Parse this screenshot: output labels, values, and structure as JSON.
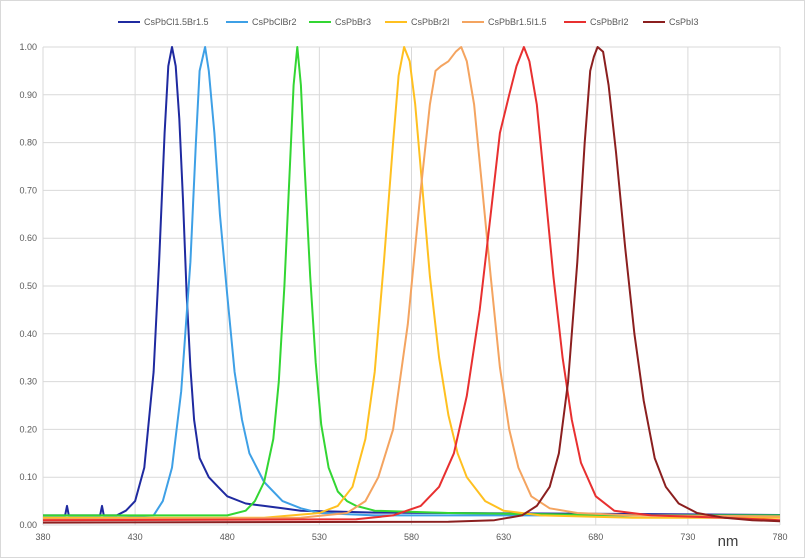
{
  "chart_data": {
    "type": "line",
    "xlabel": "nm",
    "ylabel": "",
    "xlim": [
      380,
      780
    ],
    "ylim": [
      0,
      1
    ],
    "x_ticks": [
      "380",
      "430",
      "480",
      "530",
      "580",
      "630",
      "680",
      "730",
      "780"
    ],
    "y_ticks": [
      "0.00",
      "0.10",
      "0.20",
      "0.30",
      "0.40",
      "0.50",
      "0.60",
      "0.70",
      "0.80",
      "0.90",
      "1.00"
    ],
    "grid": true,
    "legend_position": "top",
    "series": [
      {
        "name": "CsPbCl1.5Br1.5",
        "color": "#1f2aa0",
        "points": [
          [
            380,
            0.02
          ],
          [
            392,
            0.02
          ],
          [
            393,
            0.04
          ],
          [
            394,
            0.02
          ],
          [
            411,
            0.02
          ],
          [
            412,
            0.04
          ],
          [
            413,
            0.02
          ],
          [
            420,
            0.02
          ],
          [
            425,
            0.03
          ],
          [
            430,
            0.05
          ],
          [
            435,
            0.12
          ],
          [
            440,
            0.32
          ],
          [
            443,
            0.55
          ],
          [
            446,
            0.82
          ],
          [
            448,
            0.96
          ],
          [
            450,
            1.0
          ],
          [
            452,
            0.96
          ],
          [
            454,
            0.85
          ],
          [
            456,
            0.68
          ],
          [
            458,
            0.48
          ],
          [
            460,
            0.33
          ],
          [
            462,
            0.22
          ],
          [
            465,
            0.14
          ],
          [
            470,
            0.1
          ],
          [
            475,
            0.08
          ],
          [
            480,
            0.06
          ],
          [
            490,
            0.045
          ],
          [
            500,
            0.04
          ],
          [
            510,
            0.035
          ],
          [
            520,
            0.03
          ],
          [
            540,
            0.028
          ],
          [
            560,
            0.026
          ],
          [
            600,
            0.025
          ],
          [
            650,
            0.024
          ],
          [
            700,
            0.023
          ],
          [
            740,
            0.022
          ],
          [
            780,
            0.021
          ]
        ]
      },
      {
        "name": "CsPbClBr2",
        "color": "#3ea0e6",
        "points": [
          [
            380,
            0.015
          ],
          [
            420,
            0.015
          ],
          [
            440,
            0.02
          ],
          [
            445,
            0.05
          ],
          [
            450,
            0.12
          ],
          [
            455,
            0.28
          ],
          [
            460,
            0.55
          ],
          [
            463,
            0.8
          ],
          [
            465,
            0.95
          ],
          [
            468,
            1.0
          ],
          [
            470,
            0.95
          ],
          [
            473,
            0.82
          ],
          [
            476,
            0.65
          ],
          [
            480,
            0.48
          ],
          [
            484,
            0.32
          ],
          [
            488,
            0.22
          ],
          [
            492,
            0.15
          ],
          [
            500,
            0.09
          ],
          [
            510,
            0.05
          ],
          [
            520,
            0.035
          ],
          [
            530,
            0.025
          ],
          [
            560,
            0.02
          ],
          [
            600,
            0.02
          ],
          [
            700,
            0.02
          ],
          [
            780,
            0.02
          ]
        ]
      },
      {
        "name": "CsPbBr3",
        "color": "#33d633",
        "points": [
          [
            380,
            0.02
          ],
          [
            450,
            0.02
          ],
          [
            480,
            0.02
          ],
          [
            490,
            0.03
          ],
          [
            495,
            0.05
          ],
          [
            500,
            0.09
          ],
          [
            505,
            0.18
          ],
          [
            508,
            0.3
          ],
          [
            511,
            0.5
          ],
          [
            514,
            0.75
          ],
          [
            516,
            0.92
          ],
          [
            518,
            1.0
          ],
          [
            520,
            0.92
          ],
          [
            522,
            0.75
          ],
          [
            525,
            0.52
          ],
          [
            528,
            0.34
          ],
          [
            531,
            0.21
          ],
          [
            535,
            0.12
          ],
          [
            540,
            0.07
          ],
          [
            545,
            0.05
          ],
          [
            550,
            0.04
          ],
          [
            560,
            0.03
          ],
          [
            600,
            0.025
          ],
          [
            700,
            0.02
          ],
          [
            780,
            0.02
          ]
        ]
      },
      {
        "name": "CsPbBr2I",
        "color": "#ffc020",
        "points": [
          [
            380,
            0.015
          ],
          [
            500,
            0.015
          ],
          [
            530,
            0.025
          ],
          [
            540,
            0.04
          ],
          [
            548,
            0.08
          ],
          [
            555,
            0.18
          ],
          [
            560,
            0.32
          ],
          [
            565,
            0.55
          ],
          [
            570,
            0.8
          ],
          [
            573,
            0.94
          ],
          [
            576,
            1.0
          ],
          [
            579,
            0.97
          ],
          [
            582,
            0.88
          ],
          [
            586,
            0.7
          ],
          [
            590,
            0.52
          ],
          [
            595,
            0.35
          ],
          [
            600,
            0.23
          ],
          [
            605,
            0.15
          ],
          [
            610,
            0.1
          ],
          [
            620,
            0.05
          ],
          [
            630,
            0.03
          ],
          [
            650,
            0.02
          ],
          [
            700,
            0.015
          ],
          [
            780,
            0.015
          ]
        ]
      },
      {
        "name": "CsPbBr1.5I1.5",
        "color": "#f4a460",
        "points": [
          [
            380,
            0.012
          ],
          [
            520,
            0.015
          ],
          [
            545,
            0.025
          ],
          [
            555,
            0.05
          ],
          [
            562,
            0.1
          ],
          [
            570,
            0.2
          ],
          [
            578,
            0.42
          ],
          [
            585,
            0.7
          ],
          [
            590,
            0.88
          ],
          [
            593,
            0.95
          ],
          [
            596,
            0.96
          ],
          [
            600,
            0.97
          ],
          [
            604,
            0.99
          ],
          [
            607,
            1.0
          ],
          [
            610,
            0.97
          ],
          [
            614,
            0.88
          ],
          [
            618,
            0.72
          ],
          [
            623,
            0.52
          ],
          [
            628,
            0.33
          ],
          [
            633,
            0.2
          ],
          [
            638,
            0.12
          ],
          [
            645,
            0.06
          ],
          [
            655,
            0.035
          ],
          [
            670,
            0.025
          ],
          [
            700,
            0.02
          ],
          [
            780,
            0.018
          ]
        ]
      },
      {
        "name": "CsPbBrI2",
        "color": "#e83030",
        "points": [
          [
            380,
            0.01
          ],
          [
            550,
            0.012
          ],
          [
            570,
            0.02
          ],
          [
            585,
            0.04
          ],
          [
            595,
            0.08
          ],
          [
            603,
            0.15
          ],
          [
            610,
            0.27
          ],
          [
            617,
            0.45
          ],
          [
            623,
            0.65
          ],
          [
            628,
            0.82
          ],
          [
            633,
            0.9
          ],
          [
            637,
            0.96
          ],
          [
            641,
            1.0
          ],
          [
            644,
            0.97
          ],
          [
            648,
            0.88
          ],
          [
            652,
            0.72
          ],
          [
            657,
            0.52
          ],
          [
            662,
            0.35
          ],
          [
            667,
            0.22
          ],
          [
            672,
            0.13
          ],
          [
            680,
            0.06
          ],
          [
            690,
            0.03
          ],
          [
            710,
            0.02
          ],
          [
            750,
            0.015
          ],
          [
            780,
            0.01
          ]
        ]
      },
      {
        "name": "CsPbI3",
        "color": "#8b1f1f",
        "points": [
          [
            380,
            0.005
          ],
          [
            600,
            0.007
          ],
          [
            625,
            0.01
          ],
          [
            640,
            0.02
          ],
          [
            648,
            0.04
          ],
          [
            655,
            0.08
          ],
          [
            660,
            0.15
          ],
          [
            665,
            0.3
          ],
          [
            670,
            0.55
          ],
          [
            674,
            0.8
          ],
          [
            677,
            0.95
          ],
          [
            679,
            0.98
          ],
          [
            681,
            1.0
          ],
          [
            684,
            0.99
          ],
          [
            687,
            0.92
          ],
          [
            691,
            0.78
          ],
          [
            696,
            0.58
          ],
          [
            701,
            0.4
          ],
          [
            706,
            0.26
          ],
          [
            712,
            0.14
          ],
          [
            718,
            0.08
          ],
          [
            725,
            0.045
          ],
          [
            735,
            0.025
          ],
          [
            750,
            0.015
          ],
          [
            765,
            0.01
          ],
          [
            780,
            0.008
          ]
        ]
      }
    ]
  }
}
